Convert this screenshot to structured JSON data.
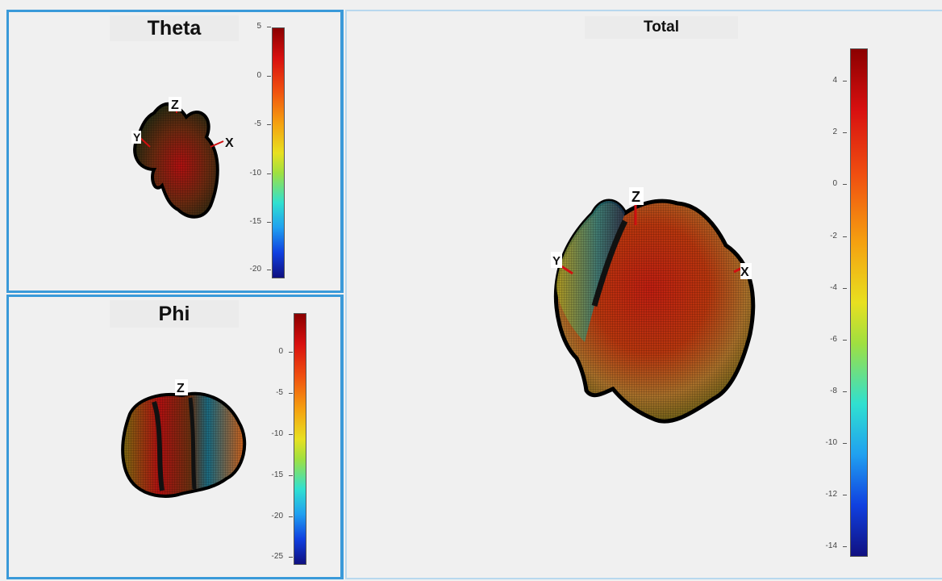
{
  "panels": {
    "theta": {
      "title": "Theta",
      "colorbar_ticks": [
        "5",
        "0",
        "-5",
        "-10",
        "-15",
        "-20"
      ],
      "axis_labels": {
        "z": "Z",
        "x": "X",
        "y": "Y"
      }
    },
    "phi": {
      "title": "Phi",
      "colorbar_ticks": [
        "0",
        "-5",
        "-10",
        "-15",
        "-20",
        "-25"
      ],
      "axis_labels": {
        "z": "Z"
      }
    },
    "total": {
      "title": "Total",
      "colorbar_ticks": [
        "4",
        "2",
        "0",
        "-2",
        "-4",
        "-6",
        "-8",
        "-10",
        "-12",
        "-14"
      ],
      "axis_labels": {
        "z": "Z",
        "x": "X",
        "y": "Y"
      }
    }
  },
  "colors": {
    "panel_border": "#3a9ad9",
    "background": "#f0f0f0",
    "colormap": "jet"
  }
}
